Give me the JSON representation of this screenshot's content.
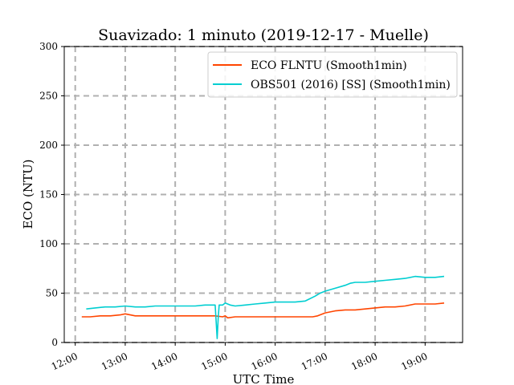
{
  "chart_data": {
    "type": "line",
    "title": "Suavizado: 1 minuto (2019-12-17 - Muelle)",
    "xlabel": "UTC Time",
    "ylabel": "ECO (NTU)",
    "x_unit": "hours UTC",
    "xlim": [
      11.78,
      19.75
    ],
    "ylim": [
      0,
      300
    ],
    "x_ticks": [
      12,
      13,
      14,
      15,
      16,
      17,
      18,
      19
    ],
    "x_tick_labels": [
      "12:00",
      "13:00",
      "14:00",
      "15:00",
      "16:00",
      "17:00",
      "18:00",
      "19:00"
    ],
    "y_ticks": [
      0,
      50,
      100,
      150,
      200,
      250,
      300
    ],
    "y_tick_labels": [
      "0",
      "50",
      "100",
      "150",
      "200",
      "250",
      "300"
    ],
    "grid": true,
    "legend_position": "top-right",
    "series": [
      {
        "name": "ECO FLNTU (Smooth1min)",
        "color": "#ff4500",
        "x": [
          12.13,
          12.3,
          12.5,
          12.7,
          12.9,
          13.0,
          13.2,
          13.4,
          13.6,
          13.8,
          14.0,
          14.2,
          14.4,
          14.6,
          14.8,
          14.95,
          15.0,
          15.05,
          15.2,
          15.4,
          15.6,
          15.8,
          16.0,
          16.2,
          16.4,
          16.6,
          16.75,
          16.85,
          17.0,
          17.2,
          17.4,
          17.6,
          17.8,
          18.0,
          18.2,
          18.4,
          18.6,
          18.8,
          19.0,
          19.2,
          19.38
        ],
        "y": [
          26,
          26,
          27,
          27,
          28,
          29,
          27,
          27,
          27,
          27,
          27,
          27,
          27,
          27,
          27,
          26,
          27,
          25,
          26,
          26,
          26,
          26,
          26,
          26,
          26,
          26,
          26,
          27,
          30,
          32,
          33,
          33,
          34,
          35,
          36,
          36,
          37,
          39,
          39,
          39,
          40
        ]
      },
      {
        "name": "OBS501 (2016) [SS] (Smooth1min)",
        "color": "#00ced1",
        "x": [
          12.22,
          12.4,
          12.6,
          12.8,
          13.0,
          13.2,
          13.4,
          13.6,
          13.8,
          14.0,
          14.2,
          14.4,
          14.6,
          14.8,
          14.84,
          14.86,
          14.88,
          14.95,
          15.0,
          15.1,
          15.2,
          15.4,
          15.6,
          15.8,
          16.0,
          16.2,
          16.4,
          16.6,
          16.8,
          16.9,
          17.0,
          17.2,
          17.4,
          17.5,
          17.6,
          17.8,
          18.0,
          18.2,
          18.4,
          18.6,
          18.8,
          19.0,
          19.2,
          19.38
        ],
        "y": [
          34,
          35,
          36,
          36,
          37,
          36,
          36,
          37,
          37,
          37,
          37,
          37,
          38,
          38,
          4,
          25,
          38,
          38,
          40,
          38,
          37,
          38,
          39,
          40,
          41,
          41,
          41,
          42,
          47,
          50,
          52,
          55,
          58,
          60,
          61,
          61,
          62,
          63,
          64,
          65,
          67,
          66,
          66,
          67
        ]
      }
    ]
  }
}
